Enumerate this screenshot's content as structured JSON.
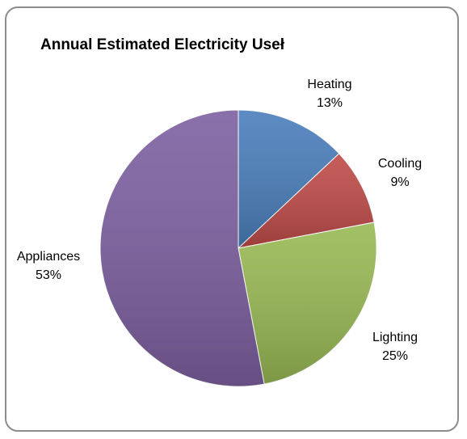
{
  "chart_data": {
    "type": "pie",
    "title": "Annual Estimated Electricity Useł",
    "slices": [
      {
        "label": "Heating",
        "value": 13,
        "value_label": "13%",
        "color": "#4a7ebb"
      },
      {
        "label": "Cooling",
        "value": 9,
        "value_label": "9%",
        "color": "#be4b48"
      },
      {
        "label": "Lighting",
        "value": 25,
        "value_label": "25%",
        "color": "#98b954"
      },
      {
        "label": "Appliances",
        "value": 53,
        "value_label": "53%",
        "color": "#7d60a0"
      }
    ],
    "start_angle_deg": 0,
    "direction": "clockwise",
    "legend": "none",
    "data_labels": "outside"
  }
}
